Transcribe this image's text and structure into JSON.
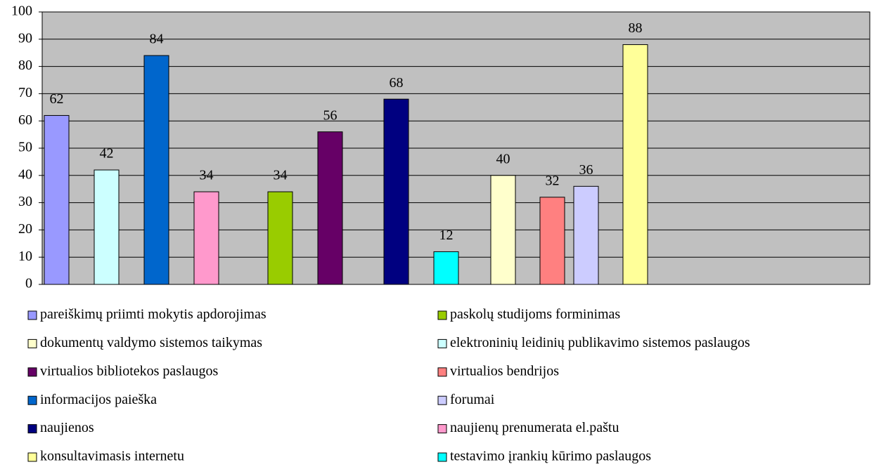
{
  "chart_data": {
    "type": "bar",
    "series": [
      {
        "name": "pareiškimų priimti mokytis apdorojimas",
        "color": "#9999ff",
        "values": [
          62
        ]
      },
      {
        "name": "paskolų studijoms forminimas",
        "color": "#99cc00",
        "values": [
          34
        ]
      },
      {
        "name": "dokumentų valdymo sistemos taikymas",
        "color": "#ffffcc",
        "values": [
          40
        ]
      },
      {
        "name": "elektroninių leidinių publikavimo sistemos paslaugos",
        "color": "#ccffff",
        "values": [
          42
        ]
      },
      {
        "name": "virtualios bibliotekos paslaugos",
        "color": "#660066",
        "values": [
          56
        ]
      },
      {
        "name": "virtualios bendrijos",
        "color": "#ff8080",
        "values": [
          32
        ]
      },
      {
        "name": "informacijos paieška",
        "color": "#0066cc",
        "values": [
          84
        ]
      },
      {
        "name": "forumai",
        "color": "#ccccff",
        "values": [
          36
        ]
      },
      {
        "name": "naujienos",
        "color": "#000080",
        "values": [
          68
        ]
      },
      {
        "name": "naujienų prenumerata el.paštu",
        "color": "#ff99cc",
        "values": [
          34
        ]
      },
      {
        "name": "konsultavimasis internetu",
        "color": "#ffff99",
        "values": [
          88
        ]
      },
      {
        "name": "testavimo įrankių kūrimo paslaugos",
        "color": "#00ffff",
        "values": [
          12
        ]
      }
    ],
    "ylim": [
      0,
      100
    ],
    "yticks": [
      0,
      10,
      20,
      30,
      40,
      50,
      60,
      70,
      80,
      90,
      100
    ],
    "grid": true
  }
}
